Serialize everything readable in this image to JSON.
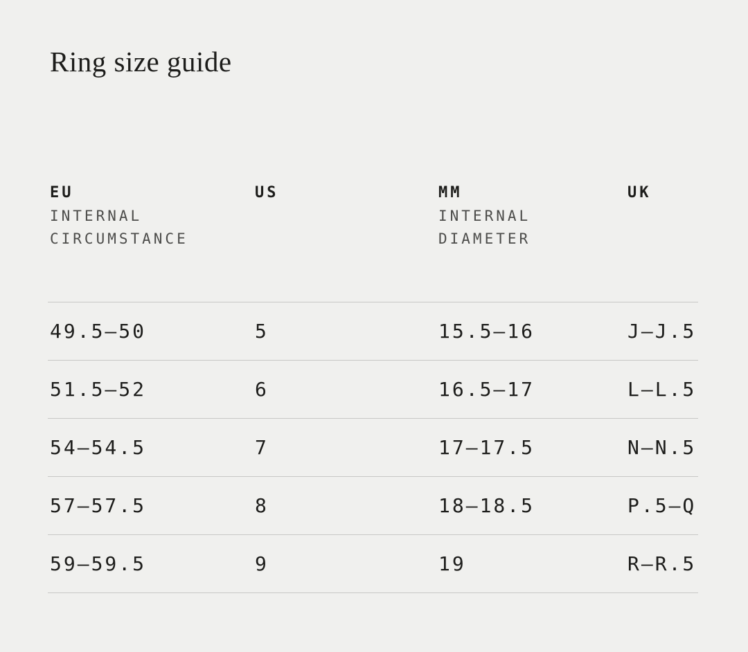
{
  "page": {
    "title": "Ring size guide"
  },
  "colors": {
    "background": "#f0f0ee",
    "text": "#1d1d1b",
    "muted": "#4c4c4a",
    "divider": "#c7c7c5"
  },
  "table": {
    "columns": [
      {
        "label": "EU",
        "sublabel": "INTERNAL\nCIRCUMSTANCE"
      },
      {
        "label": "US",
        "sublabel": ""
      },
      {
        "label": "MM",
        "sublabel": "INTERNAL\nDIAMETER"
      },
      {
        "label": "UK",
        "sublabel": ""
      }
    ],
    "rows": [
      [
        "49.5—50",
        "5",
        "15.5—16",
        "J—J.5"
      ],
      [
        "51.5—52",
        "6",
        "16.5—17",
        "L—L.5"
      ],
      [
        "54—54.5",
        "7",
        "17—17.5",
        "N—N.5"
      ],
      [
        "57—57.5",
        "8",
        "18—18.5",
        "P.5—Q"
      ],
      [
        "59—59.5",
        "9",
        "19",
        "R—R.5"
      ]
    ]
  }
}
